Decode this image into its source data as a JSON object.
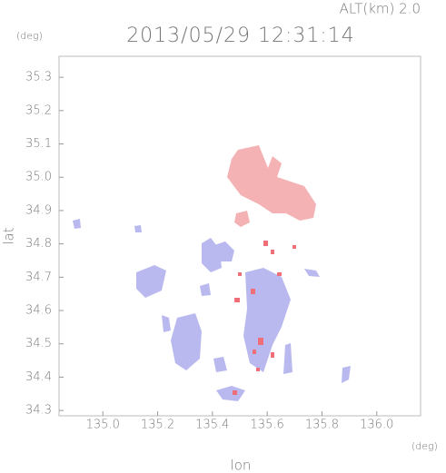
{
  "chart_data": {
    "type": "map",
    "title": "2013/05/29 12:31:14",
    "annotation": "ALT(km) 2.0",
    "x_label": "lon",
    "y_label": "lat",
    "x_unit": "(deg)",
    "y_unit": "(deg)",
    "xlim": [
      134.84,
      136.16
    ],
    "ylim": [
      34.284,
      35.363
    ],
    "xticks": [
      {
        "value": 135.0,
        "label": "135.0"
      },
      135.2,
      135.4,
      135.6,
      135.8,
      {
        "value": 136.0,
        "label": "136.0"
      }
    ],
    "yticks": [
      34.3,
      34.4,
      34.5,
      34.6,
      34.7,
      34.8,
      34.9,
      {
        "value": 35.0,
        "label": "35.0"
      },
      35.1,
      35.2,
      35.3
    ]
  }
}
